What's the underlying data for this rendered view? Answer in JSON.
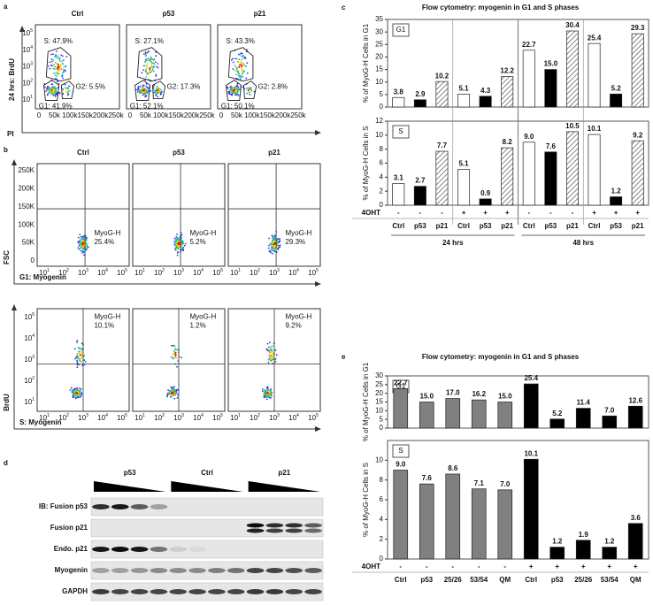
{
  "panel_a": {
    "label": "a",
    "columns": [
      "Ctrl",
      "p53",
      "p21"
    ],
    "y_label": "24 hrs: BrdU",
    "x_label": "PI",
    "x_ticks": [
      "0",
      "50k",
      "100k",
      "150k",
      "200k",
      "250k"
    ],
    "tick_base": "10",
    "y_tick_exponents": [
      "5",
      "4",
      "3",
      "2",
      "1"
    ],
    "gates": [
      {
        "S": "S: 47.9%",
        "G2": "G2: 5.5%",
        "G1": "G1: 41.9%"
      },
      {
        "S": "S: 27.1%",
        "G2": "G2: 17.3%",
        "G1": "G1: 52.1%"
      },
      {
        "S": "S: 43.3%",
        "G2": "G2: 2.8%",
        "G1": "G1: 50.1%"
      }
    ]
  },
  "panel_b": {
    "label": "b",
    "columns": [
      "Ctrl",
      "p53",
      "p21"
    ],
    "tick_base": "10",
    "x_tick_exponents": [
      "1",
      "2",
      "3",
      "4",
      "5"
    ],
    "rows": [
      {
        "y_label": "FSC",
        "x_label": "G1: Myogenin",
        "y_ticks": [
          "250K",
          "200K",
          "150K",
          "100K",
          "50K",
          "0"
        ],
        "gates": [
          [
            "MyoG-H",
            "25.4%"
          ],
          [
            "MyoG-H",
            "5.2%"
          ],
          [
            "MyoG-H",
            "29.3%"
          ]
        ]
      },
      {
        "y_label": "BrdU",
        "x_label": "S: Myogenin",
        "y_tick_exponents": [
          "5",
          "4",
          "3",
          "2",
          "1"
        ],
        "gates": [
          [
            "MyoG-H",
            "10.1%"
          ],
          [
            "MyoG-H",
            "1.2%"
          ],
          [
            "MyoG-H",
            "9.2%"
          ]
        ]
      }
    ]
  },
  "panel_d": {
    "label": "d",
    "groups": [
      "p53",
      "Ctrl",
      "p21"
    ],
    "rows": [
      "IB: Fusion p53",
      "Fusion p21",
      "Endo. p21",
      "Myogenin",
      "GAPDH"
    ]
  },
  "chart_data": [
    {
      "type": "bar",
      "panel_label": "c",
      "title": "Flow cytometry: myogenin in G1 and S phases",
      "inset_label": "G1",
      "y_label": "% of MyoG-H Cells in G1",
      "values": [
        3.8,
        2.9,
        10.2,
        5.1,
        4.3,
        12.2,
        22.7,
        15.0,
        30.4,
        25.4,
        5.2,
        29.3
      ],
      "value_labels": [
        "3.8",
        "2.9",
        "10.2",
        "5.1",
        "4.3",
        "12.2",
        "22.7",
        "15.0",
        "30.4",
        "25.4",
        "5.2",
        "29.3"
      ],
      "fills": [
        "#ffffff",
        "#000000",
        "hatched",
        "#ffffff",
        "#000000",
        "hatched",
        "#ffffff",
        "#000000",
        "hatched",
        "#ffffff",
        "#000000",
        "hatched"
      ],
      "ylim": [
        0,
        35
      ],
      "yticks": [
        0,
        5,
        10,
        15,
        20,
        25,
        30,
        35
      ]
    },
    {
      "type": "bar",
      "inset_label": "S",
      "y_label": "% of MyoG-H Cells in S",
      "values": [
        3.1,
        2.7,
        7.7,
        5.1,
        0.9,
        8.2,
        9.0,
        7.6,
        10.5,
        10.1,
        1.2,
        9.2
      ],
      "value_labels": [
        "3.1",
        "2.7",
        "7.7",
        "5.1",
        "0.9",
        "8.2",
        "9.0",
        "7.6",
        "10.5",
        "10.1",
        "1.2",
        "9.2"
      ],
      "fills": [
        "#ffffff",
        "#000000",
        "hatched",
        "#ffffff",
        "#000000",
        "hatched",
        "#ffffff",
        "#000000",
        "hatched",
        "#ffffff",
        "#000000",
        "hatched"
      ],
      "ylim": [
        0,
        12
      ],
      "yticks": [
        0,
        2,
        4,
        6,
        8,
        10,
        12
      ],
      "treatment_label": "4OHT",
      "treatment": [
        "-",
        "-",
        "-",
        "+",
        "+",
        "+",
        "-",
        "-",
        "-",
        "+",
        "+",
        "+"
      ],
      "categories": [
        "Ctrl",
        "p53",
        "p21",
        "Ctrl",
        "p53",
        "p21",
        "Ctrl",
        "p53",
        "p21",
        "Ctrl",
        "p53",
        "p21"
      ],
      "group_labels": [
        "24 hrs",
        "48 hrs"
      ]
    },
    {
      "type": "bar",
      "panel_label": "e",
      "title": "Flow cytometry: myogenin in G1 and S phases",
      "inset_label": "G1",
      "y_label": "% of MyoG-H Cells in G1",
      "values": [
        22.7,
        15.0,
        17.0,
        16.2,
        15.0,
        25.4,
        5.2,
        11.4,
        7.0,
        12.6
      ],
      "value_labels": [
        "22.7",
        "15.0",
        "17.0",
        "16.2",
        "15.0",
        "25.4",
        "5.2",
        "11.4",
        "7.0",
        "12.6"
      ],
      "fills": [
        "#808080",
        "#808080",
        "#808080",
        "#808080",
        "#808080",
        "#000000",
        "#000000",
        "#000000",
        "#000000",
        "#000000"
      ],
      "ylim": [
        0,
        30
      ],
      "yticks": [
        0,
        5,
        10,
        15,
        20,
        25,
        30
      ]
    },
    {
      "type": "bar",
      "inset_label": "S",
      "y_label": "% of MyoG-H Cells in S",
      "values": [
        9.0,
        7.6,
        8.6,
        7.1,
        7.0,
        10.1,
        1.2,
        1.9,
        1.2,
        3.6
      ],
      "value_labels": [
        "9.0",
        "7.6",
        "8.6",
        "7.1",
        "7.0",
        "10.1",
        "1.2",
        "1.9",
        "1.2",
        "3.6"
      ],
      "fills": [
        "#808080",
        "#808080",
        "#808080",
        "#808080",
        "#808080",
        "#000000",
        "#000000",
        "#000000",
        "#000000",
        "#000000"
      ],
      "ylim": [
        0,
        12
      ],
      "yticks": [
        0,
        2,
        4,
        6,
        8,
        10
      ],
      "treatment_label": "4OHT",
      "treatment": [
        "-",
        "-",
        "-",
        "-",
        "-",
        "+",
        "+",
        "+",
        "+",
        "+"
      ],
      "categories": [
        "Ctrl",
        "p53",
        "25/26",
        "53/54",
        "QM",
        "Ctrl",
        "p53",
        "25/26",
        "53/54",
        "QM"
      ]
    }
  ]
}
